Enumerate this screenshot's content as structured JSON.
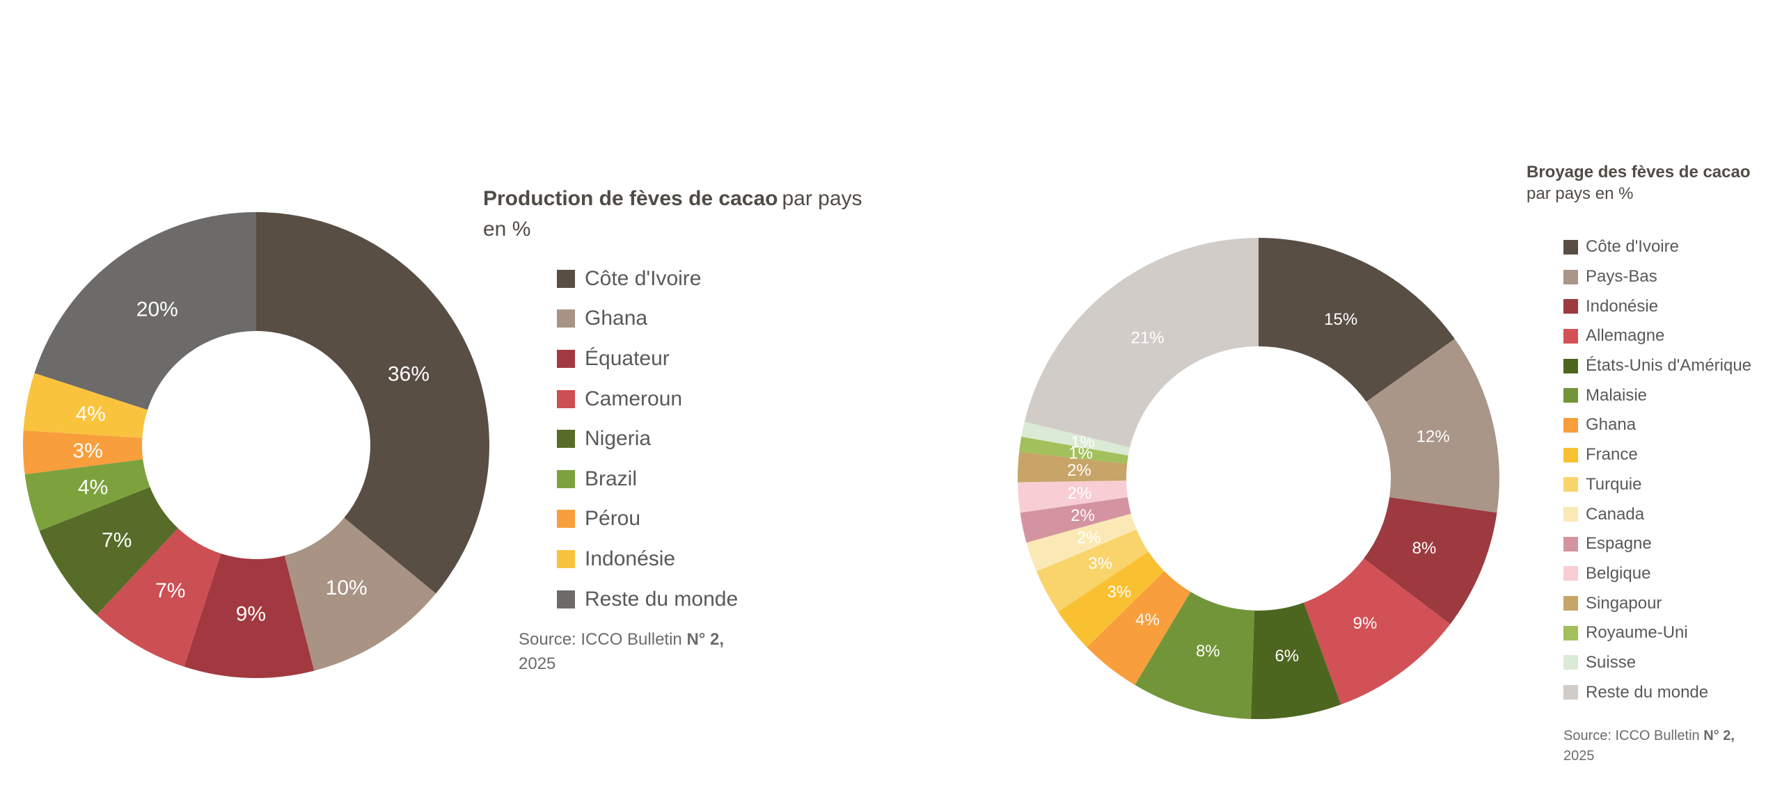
{
  "page": {
    "background": "#ffffff",
    "label_color": "#ffffff"
  },
  "chart_data": [
    {
      "type": "donut",
      "title_bold": "Production de fèves de cacao",
      "title_regular": "par pays en %",
      "categories": [
        "Côte d'Ivoire",
        "Ghana",
        "Équateur",
        "Cameroun",
        "Nigeria",
        "Brazil",
        "Pérou",
        "Indonésie",
        "Reste du monde"
      ],
      "values": [
        36,
        10,
        9,
        7,
        7,
        4,
        3,
        4,
        20
      ],
      "labels": [
        "36%",
        "10%",
        "9%",
        "7%",
        "7%",
        "4%",
        "3%",
        "4%",
        "20%"
      ],
      "colors": [
        "#594e44",
        "#a89384",
        "#a23940",
        "#cc4f54",
        "#566c28",
        "#7da23d",
        "#f89e3d",
        "#fac33e",
        "#6c6b69"
      ],
      "label_color": "#ffffff",
      "unit": "%",
      "start_angle": 0,
      "direction": "clockwise",
      "legend_position": "right",
      "source": {
        "prefix": "Source: ICCO Bulletin ",
        "number": "N° 2,",
        "line2": "2025"
      }
    },
    {
      "type": "donut",
      "title_bold": "Broyage des fèves de cacao",
      "title_regular": "par pays en %",
      "categories": [
        "Côte d'Ivoire",
        "Pays-Bas",
        "Indonésie",
        "Allemagne",
        "États-Unis d'Amérique",
        "Malaisie",
        "Ghana",
        "France",
        "Turquie",
        "Canada",
        "Espagne",
        "Belgique",
        "Singapour",
        "Royaume-Uni",
        "Suisse",
        "Reste du monde"
      ],
      "values": [
        15,
        12,
        8,
        9,
        6,
        8,
        4,
        3,
        3,
        2,
        2,
        2,
        2,
        1,
        1,
        21
      ],
      "labels": [
        "15%",
        "12%",
        "8%",
        "9%",
        "6%",
        "8%",
        "4%",
        "3%",
        "3%",
        "2%",
        "2%",
        "2%",
        "2%",
        "1%",
        "1%",
        "21%"
      ],
      "colors": [
        "#594e44",
        "#a99688",
        "#9c3a40",
        "#d25157",
        "#4d661f",
        "#739539",
        "#f89e3d",
        "#f9c032",
        "#f9d46b",
        "#fbe9b5",
        "#d3949f",
        "#f8cdd4",
        "#c7a468",
        "#a2c05c",
        "#dbead4",
        "#d2ccc8"
      ],
      "label_color": "#ffffff",
      "unit": "%",
      "start_angle": 0,
      "direction": "clockwise",
      "legend_position": "right",
      "source": {
        "prefix": "Source: ICCO Bulletin ",
        "number": "N° 2,",
        "line2": "2025"
      }
    }
  ]
}
